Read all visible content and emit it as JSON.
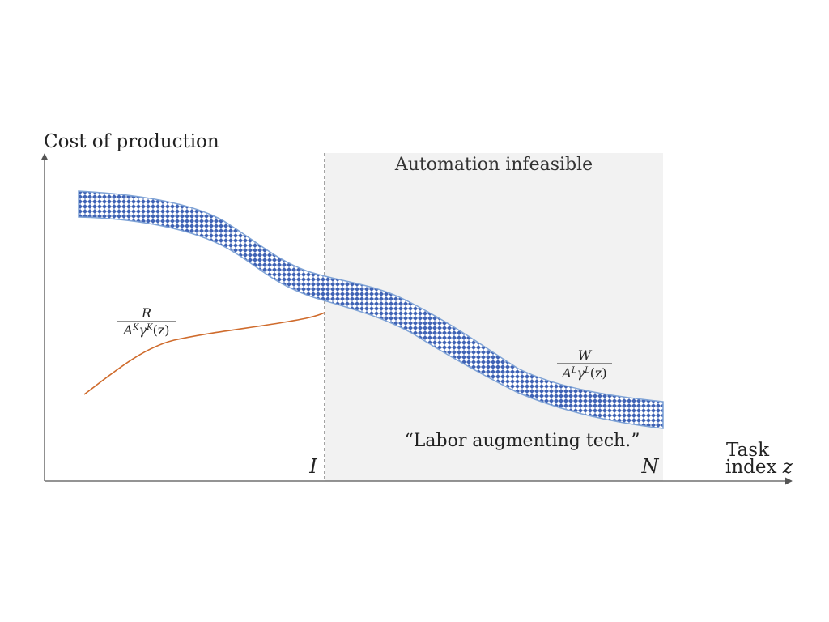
{
  "diagram": {
    "y_axis_label": "Cost of production",
    "x_axis_label_line1": "Task",
    "x_axis_label_line2_prefix": "index ",
    "x_axis_label_line2_var": "z",
    "region_label": "Automation infeasible",
    "region_annotation": "“Labor augmenting tech.”",
    "marker_I": "I",
    "marker_N": "N",
    "capital_cost": {
      "numerator": "R",
      "denominator_A": "A",
      "denominator_A_sup": "K",
      "denominator_gamma": "γ",
      "denominator_gamma_sup": "K",
      "denominator_arg": "(z)"
    },
    "labor_cost": {
      "numerator": "W",
      "denominator_A": "A",
      "denominator_A_sup": "L",
      "denominator_gamma": "γ",
      "denominator_gamma_sup": "L",
      "denominator_arg": "(z)"
    },
    "colors": {
      "axis": "#555555",
      "shaded_region": "#f2f2f2",
      "labor_band_fill": "#3f63b5",
      "labor_band_edge": "#7fa3d6",
      "capital_curve": "#cf6b2c",
      "divider": "#666666"
    }
  }
}
